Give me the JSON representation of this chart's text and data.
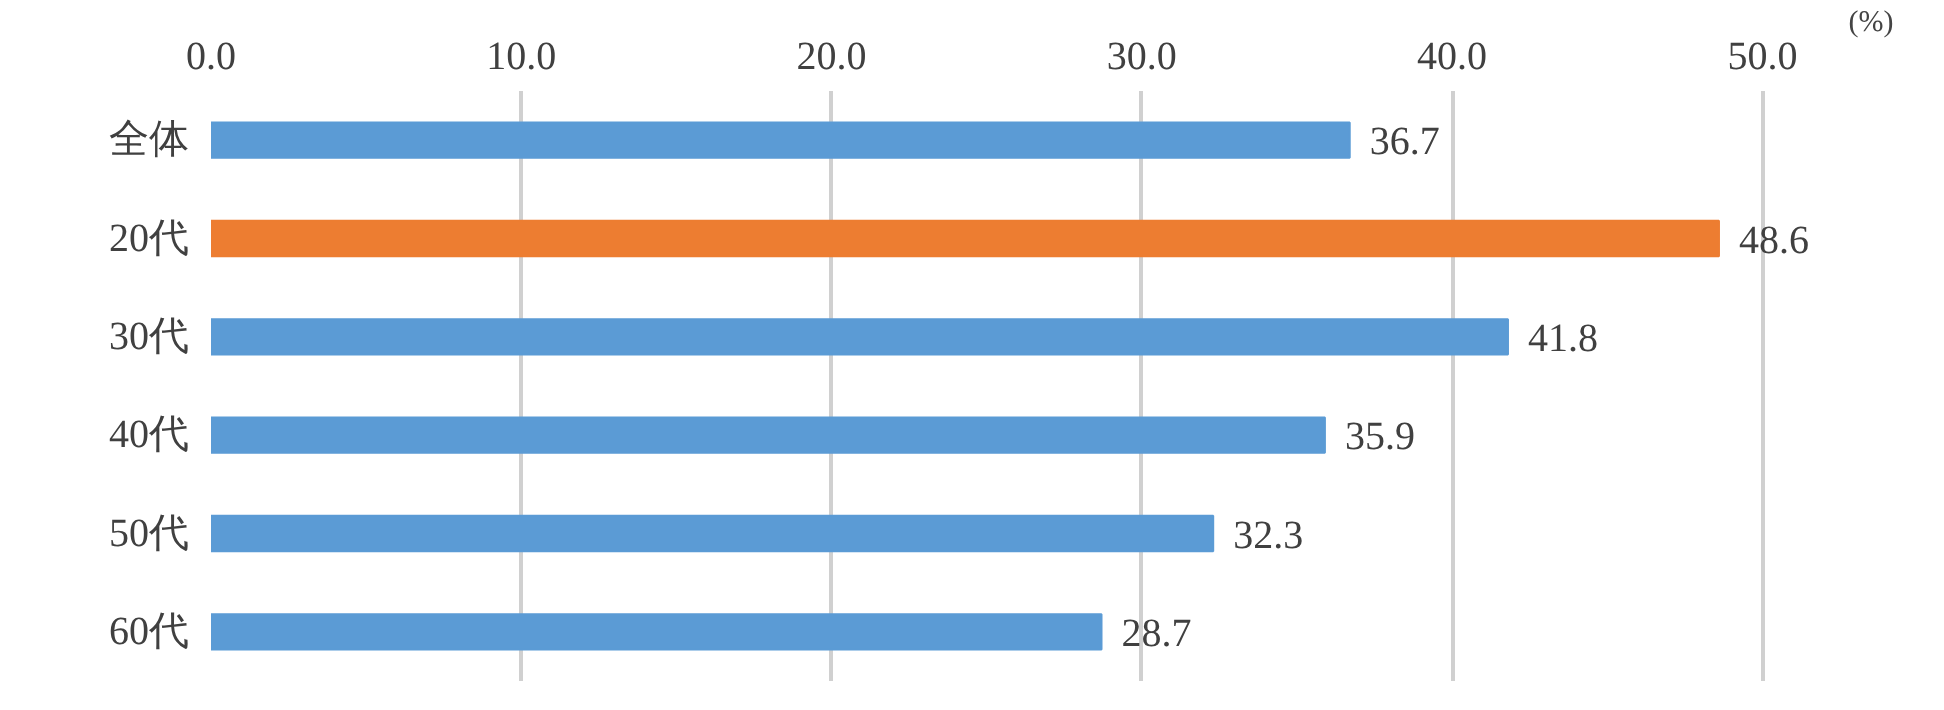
{
  "chart_data": {
    "type": "bar",
    "orientation": "horizontal",
    "xlabel": "(%)",
    "categories": [
      "全体",
      "20代",
      "30代",
      "40代",
      "50代",
      "60代"
    ],
    "values": [
      36.7,
      48.6,
      41.8,
      35.9,
      32.3,
      28.7
    ],
    "colors": [
      "#5b9bd5",
      "#ed7d31",
      "#5b9bd5",
      "#5b9bd5",
      "#5b9bd5",
      "#5b9bd5"
    ],
    "xlim": [
      0,
      50
    ],
    "xticks": [
      {
        "value": 0,
        "label": "0.0"
      },
      {
        "value": 10,
        "label": "10.0"
      },
      {
        "value": 20,
        "label": "20.0"
      },
      {
        "value": 30,
        "label": "30.0"
      },
      {
        "value": 40,
        "label": "40.0"
      },
      {
        "value": 50,
        "label": "50.0"
      }
    ],
    "grid": "x",
    "data_labels": true
  }
}
